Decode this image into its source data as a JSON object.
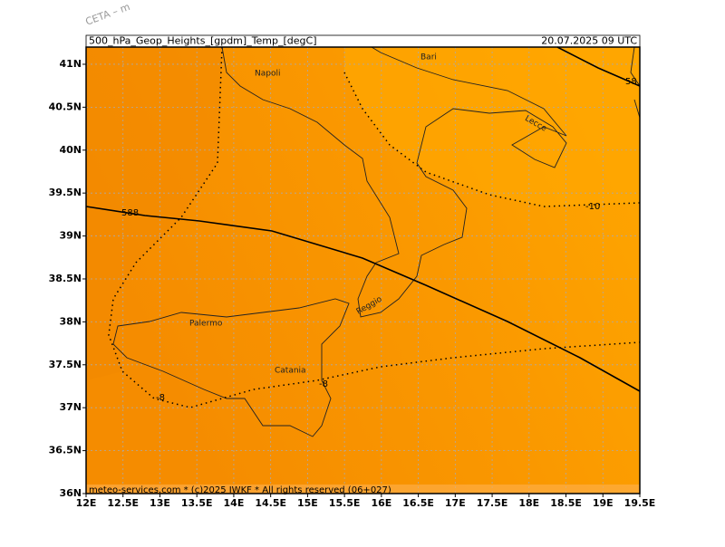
{
  "header": {
    "product": "500_hPa_Geop_Heights_[gpdm]_Temp_[degC]",
    "valid_time": "20.07.2025 09 UTC",
    "model_tag": "CETA – m"
  },
  "footer": "meteo-services.com * (c)2025 IWKF * All rights reserved (06+027)",
  "map": {
    "lon_range": [
      12,
      19.5
    ],
    "lat_range": [
      36,
      41.2
    ],
    "lon_ticks": [
      {
        "value": 12,
        "label": "12E"
      },
      {
        "value": 12.5,
        "label": "12.5E"
      },
      {
        "value": 13,
        "label": "13E"
      },
      {
        "value": 13.5,
        "label": "13.5E"
      },
      {
        "value": 14,
        "label": "14E"
      },
      {
        "value": 14.5,
        "label": "14.5E"
      },
      {
        "value": 15,
        "label": "15E"
      },
      {
        "value": 15.5,
        "label": "15.5E"
      },
      {
        "value": 16,
        "label": "16E"
      },
      {
        "value": 16.5,
        "label": "16.5E"
      },
      {
        "value": 17,
        "label": "17E"
      },
      {
        "value": 17.5,
        "label": "17.5E"
      },
      {
        "value": 18,
        "label": "18E"
      },
      {
        "value": 18.5,
        "label": "18.5E"
      },
      {
        "value": 19,
        "label": "19E"
      },
      {
        "value": 19.5,
        "label": "19.5E"
      }
    ],
    "lat_ticks": [
      {
        "value": 36,
        "label": "36N"
      },
      {
        "value": 36.5,
        "label": "36.5N"
      },
      {
        "value": 37,
        "label": "37N"
      },
      {
        "value": 37.5,
        "label": "37.5N"
      },
      {
        "value": 38,
        "label": "38N"
      },
      {
        "value": 38.5,
        "label": "38.5N"
      },
      {
        "value": 39,
        "label": "39N"
      },
      {
        "value": 39.5,
        "label": "39.5N"
      },
      {
        "value": 40,
        "label": "40N"
      },
      {
        "value": 40.5,
        "label": "40.5N"
      },
      {
        "value": 41,
        "label": "41N"
      }
    ],
    "cities": [
      "Napoli",
      "Bari",
      "Lecce",
      "Palermo",
      "Catania",
      "Reggio"
    ],
    "contour_labels": [
      "588",
      "58",
      "-10",
      "-8",
      "-8"
    ]
  }
}
